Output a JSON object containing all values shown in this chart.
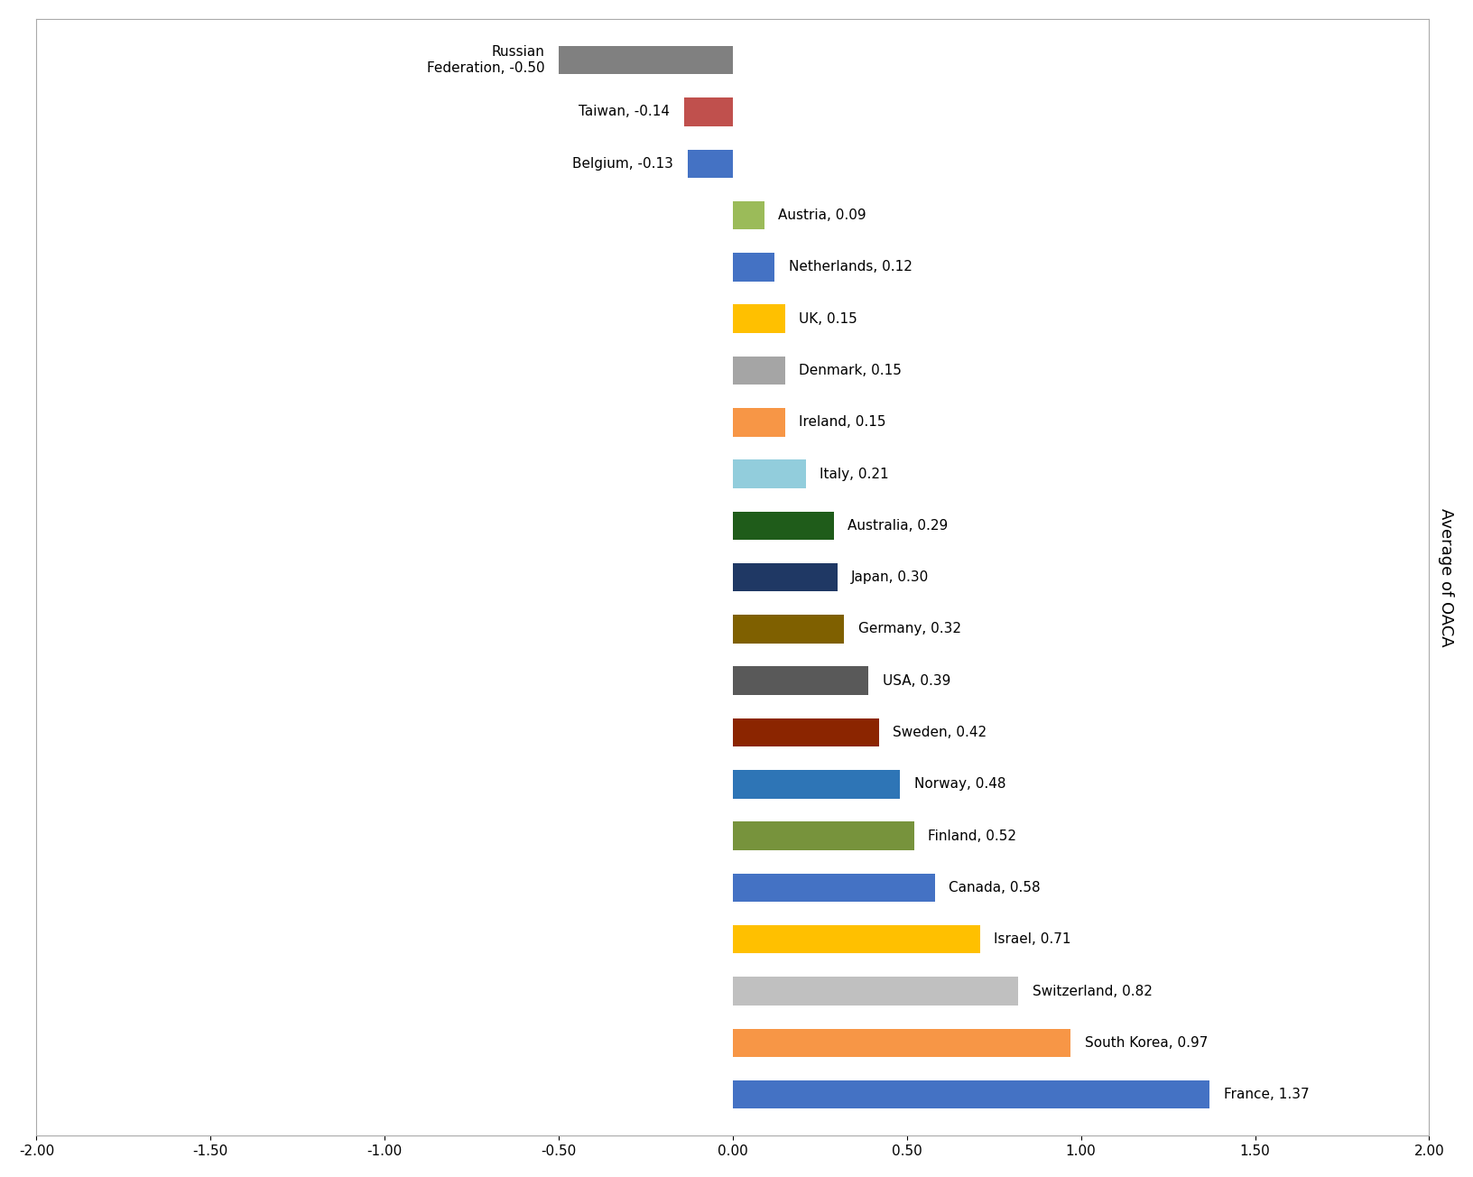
{
  "countries": [
    "Russian\nFederation, -0.50",
    "Taiwan, -0.14",
    "Belgium, -0.13",
    "Austria, 0.09",
    "Netherlands, 0.12",
    "UK, 0.15",
    "Denmark, 0.15",
    "Ireland, 0.15",
    "Italy, 0.21",
    "Australia, 0.29",
    "Japan, 0.30",
    "Germany, 0.32",
    "USA, 0.39",
    "Sweden, 0.42",
    "Norway, 0.48",
    "Finland, 0.52",
    "Canada, 0.58",
    "Israel, 0.71",
    "Switzerland, 0.82",
    "South Korea, 0.97",
    "France, 1.37"
  ],
  "values": [
    -0.5,
    -0.14,
    -0.13,
    0.09,
    0.12,
    0.15,
    0.15,
    0.15,
    0.21,
    0.29,
    0.3,
    0.32,
    0.39,
    0.42,
    0.48,
    0.52,
    0.58,
    0.71,
    0.82,
    0.97,
    1.37
  ],
  "colors": [
    "#808080",
    "#C0504D",
    "#4472C4",
    "#9BBB59",
    "#4472C4",
    "#FFC000",
    "#A5A5A5",
    "#F79646",
    "#92CDDC",
    "#1F5C1A",
    "#1F3864",
    "#7F6000",
    "#595959",
    "#8B2500",
    "#2E75B6",
    "#77933C",
    "#4472C4",
    "#FFC000",
    "#C0C0C0",
    "#F79646",
    "#4472C4"
  ],
  "ylabel": "Average of OACA",
  "xlim": [
    -2.0,
    2.0
  ],
  "xticks": [
    -2.0,
    -1.5,
    -1.0,
    -0.5,
    0.0,
    0.5,
    1.0,
    1.5,
    2.0
  ],
  "background_color": "#FFFFFF",
  "figure_background": "#FFFFFF"
}
